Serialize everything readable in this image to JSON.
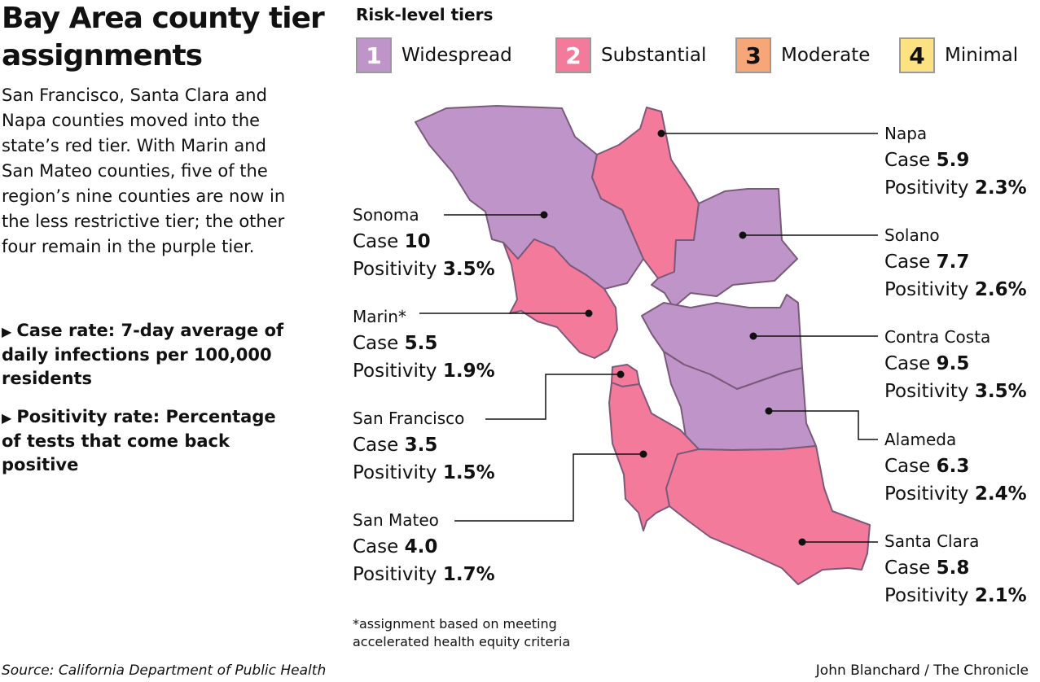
{
  "title": "Bay Area county tier assignments",
  "intro": "San Francisco, Santa Clara and Napa counties moved into the state’s red tier. With Marin and San Mateo counties, five of the region’s nine counties are now in the less restrictive tier; the other four remain in the purple tier.",
  "definitions": [
    {
      "text": "Case rate: 7-day average of daily infections per 100,000 residents"
    },
    {
      "text": "Positivity rate: Percentage of tests that come back positive"
    }
  ],
  "legend": {
    "title": "Risk-level tiers",
    "tiers": [
      {
        "number": "1",
        "label": "Widespread",
        "color": "#bf95c9"
      },
      {
        "number": "2",
        "label": "Substantial",
        "color": "#f47a9c"
      },
      {
        "number": "3",
        "label": "Moderate",
        "color": "#f6a677"
      },
      {
        "number": "4",
        "label": "Minimal",
        "color": "#fde282"
      }
    ]
  },
  "row_labels": {
    "case": "Case",
    "positivity": "Positivity"
  },
  "counties": [
    {
      "id": "sonoma",
      "name": "Sonoma",
      "tier": 1,
      "case": "10",
      "positivity": "3.5%"
    },
    {
      "id": "marin",
      "name": "Marin*",
      "tier": 2,
      "case": "5.5",
      "positivity": "1.9%"
    },
    {
      "id": "san-francisco",
      "name": "San Francisco",
      "tier": 2,
      "case": "3.5",
      "positivity": "1.5%"
    },
    {
      "id": "san-mateo",
      "name": "San Mateo",
      "tier": 2,
      "case": "4.0",
      "positivity": "1.7%"
    },
    {
      "id": "napa",
      "name": "Napa",
      "tier": 2,
      "case": "5.9",
      "positivity": "2.3%"
    },
    {
      "id": "solano",
      "name": "Solano",
      "tier": 1,
      "case": "7.7",
      "positivity": "2.6%"
    },
    {
      "id": "contra-costa",
      "name": "Contra Costa",
      "tier": 1,
      "case": "9.5",
      "positivity": "3.5%"
    },
    {
      "id": "alameda",
      "name": "Alameda",
      "tier": 1,
      "case": "6.3",
      "positivity": "2.4%"
    },
    {
      "id": "santa-clara",
      "name": "Santa Clara",
      "tier": 2,
      "case": "5.8",
      "positivity": "2.1%"
    }
  ],
  "footnote": "*assignment based on meeting accelerated health equity criteria",
  "source": "Source: California Department of Public Health",
  "credit": "John Blanchard / The Chronicle"
}
